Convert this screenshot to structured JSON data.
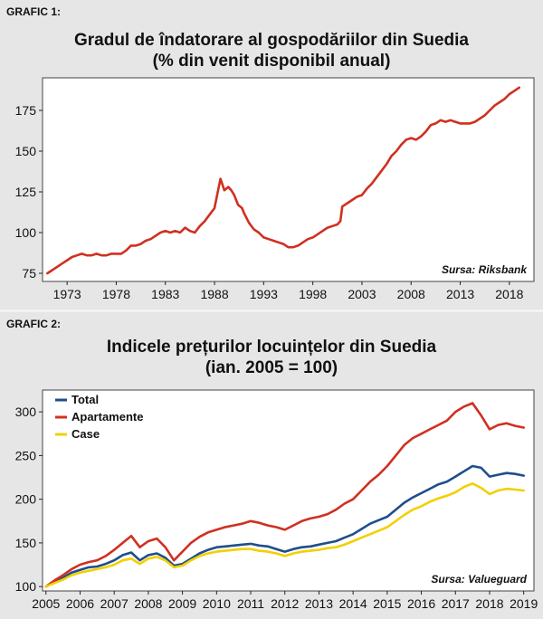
{
  "colors": {
    "debt_line": "#d03020",
    "total": "#1f4e8c",
    "apartments": "#d03020",
    "houses": "#f2d000",
    "panel_bg": "#e6e6e6",
    "plot_bg": "#ffffff"
  },
  "chart_data": [
    {
      "label": "GRAFIC 1:",
      "type": "line",
      "title": "Gradul de îndatorare al gospodăriilor din Suedia",
      "subtitle": "(% din venit disponibil anual)",
      "source": "Sursa: Riksbank",
      "xlim": [
        1970.5,
        2020.5
      ],
      "ylim": [
        70,
        195
      ],
      "x_ticks": [
        1973,
        1978,
        1983,
        1988,
        1993,
        1998,
        2003,
        2008,
        2013,
        2018
      ],
      "y_ticks": [
        75,
        100,
        125,
        150,
        175
      ],
      "grid": false,
      "series": [
        {
          "color": "#d03020",
          "x": [
            1971,
            1971.5,
            1972,
            1972.5,
            1973,
            1973.5,
            1974,
            1974.5,
            1975,
            1975.5,
            1976,
            1976.5,
            1977,
            1977.5,
            1978,
            1978.5,
            1979,
            1979.5,
            1980,
            1980.5,
            1981,
            1981.5,
            1982,
            1982.5,
            1983,
            1983.5,
            1984,
            1984.5,
            1985,
            1985.5,
            1986,
            1986.5,
            1987,
            1987.5,
            1988,
            1988.3,
            1988.6,
            1989,
            1989.4,
            1989.7,
            1990,
            1990.4,
            1990.8,
            1991,
            1991.5,
            1992,
            1992.5,
            1993,
            1993.5,
            1994,
            1994.5,
            1995,
            1995.5,
            1996,
            1996.5,
            1997,
            1997.5,
            1998,
            1998.5,
            1999,
            1999.5,
            2000,
            2000.5,
            2000.8,
            2001,
            2001.5,
            2002,
            2002.5,
            2003,
            2003.5,
            2004,
            2004.5,
            2005,
            2005.5,
            2006,
            2006.5,
            2007,
            2007.5,
            2008,
            2008.5,
            2009,
            2009.5,
            2010,
            2010.5,
            2011,
            2011.5,
            2012,
            2012.5,
            2013,
            2013.5,
            2014,
            2014.5,
            2015,
            2015.5,
            2016,
            2016.5,
            2017,
            2017.5,
            2018,
            2018.5,
            2019
          ],
          "y": [
            75,
            77,
            79,
            81,
            83,
            85,
            86,
            87,
            86,
            86,
            87,
            86,
            86,
            87,
            87,
            87,
            89,
            92,
            92,
            93,
            95,
            96,
            98,
            100,
            101,
            100,
            101,
            100,
            103,
            101,
            100,
            104,
            107,
            111,
            115,
            124,
            133,
            126,
            128,
            126,
            123,
            117,
            115,
            112,
            106,
            102,
            100,
            97,
            96,
            95,
            94,
            93,
            91,
            91,
            92,
            94,
            96,
            97,
            99,
            101,
            103,
            104,
            105,
            107,
            116,
            118,
            120,
            122,
            123,
            127,
            130,
            134,
            138,
            142,
            147,
            150,
            154,
            157,
            158,
            157,
            159,
            162,
            166,
            167,
            169,
            168,
            169,
            168,
            167,
            167,
            167,
            168,
            170,
            172,
            175,
            178,
            180,
            182,
            185,
            187,
            189
          ]
        }
      ]
    },
    {
      "label": "GRAFIC 2:",
      "type": "line",
      "title": "Indicele prețurilor locuințelor din Suedia",
      "subtitle": "(ian. 2005 = 100)",
      "source": "Sursa: Valueguard",
      "xlim": [
        2004.9,
        2019.3
      ],
      "ylim": [
        95,
        325
      ],
      "x_ticks": [
        2005,
        2006,
        2007,
        2008,
        2009,
        2010,
        2011,
        2012,
        2013,
        2014,
        2015,
        2016,
        2017,
        2018,
        2019
      ],
      "y_ticks": [
        100,
        150,
        200,
        250,
        300
      ],
      "grid": false,
      "legend_position": "top-left",
      "x": [
        2005,
        2005.25,
        2005.5,
        2005.75,
        2006,
        2006.25,
        2006.5,
        2006.75,
        2007,
        2007.25,
        2007.5,
        2007.75,
        2008,
        2008.25,
        2008.5,
        2008.75,
        2009,
        2009.25,
        2009.5,
        2009.75,
        2010,
        2010.25,
        2010.5,
        2010.75,
        2011,
        2011.25,
        2011.5,
        2011.75,
        2012,
        2012.25,
        2012.5,
        2012.75,
        2013,
        2013.25,
        2013.5,
        2013.75,
        2014,
        2014.25,
        2014.5,
        2014.75,
        2015,
        2015.25,
        2015.5,
        2015.75,
        2016,
        2016.25,
        2016.5,
        2016.75,
        2017,
        2017.25,
        2017.5,
        2017.75,
        2018,
        2018.25,
        2018.5,
        2018.75,
        2019
      ],
      "series": [
        {
          "name": "Total",
          "color": "#1f4e8c",
          "values": [
            100,
            105,
            110,
            116,
            119,
            122,
            123,
            126,
            130,
            136,
            139,
            130,
            136,
            138,
            133,
            124,
            126,
            132,
            138,
            142,
            145,
            146,
            147,
            148,
            149,
            147,
            146,
            143,
            140,
            143,
            145,
            146,
            148,
            150,
            152,
            156,
            160,
            166,
            172,
            176,
            180,
            188,
            196,
            202,
            207,
            212,
            217,
            220,
            226,
            232,
            238,
            236,
            226,
            228,
            230,
            229,
            227
          ]
        },
        {
          "name": "Apartamente",
          "color": "#d03020",
          "values": [
            100,
            107,
            113,
            120,
            125,
            128,
            130,
            135,
            142,
            150,
            158,
            145,
            152,
            155,
            145,
            130,
            140,
            150,
            157,
            162,
            165,
            168,
            170,
            172,
            175,
            173,
            170,
            168,
            165,
            170,
            175,
            178,
            180,
            183,
            188,
            195,
            200,
            210,
            220,
            228,
            238,
            250,
            262,
            270,
            275,
            280,
            285,
            290,
            300,
            306,
            310,
            296,
            280,
            285,
            287,
            284,
            282
          ]
        },
        {
          "name": "Case",
          "color": "#f2d000",
          "values": [
            100,
            104,
            108,
            113,
            116,
            118,
            120,
            122,
            125,
            130,
            132,
            126,
            132,
            134,
            130,
            122,
            124,
            130,
            135,
            138,
            140,
            141,
            142,
            143,
            143,
            141,
            140,
            138,
            135,
            138,
            140,
            141,
            142,
            144,
            145,
            148,
            152,
            156,
            160,
            164,
            168,
            175,
            182,
            188,
            192,
            197,
            201,
            204,
            208,
            214,
            218,
            213,
            206,
            210,
            212,
            211,
            210
          ]
        }
      ]
    }
  ]
}
